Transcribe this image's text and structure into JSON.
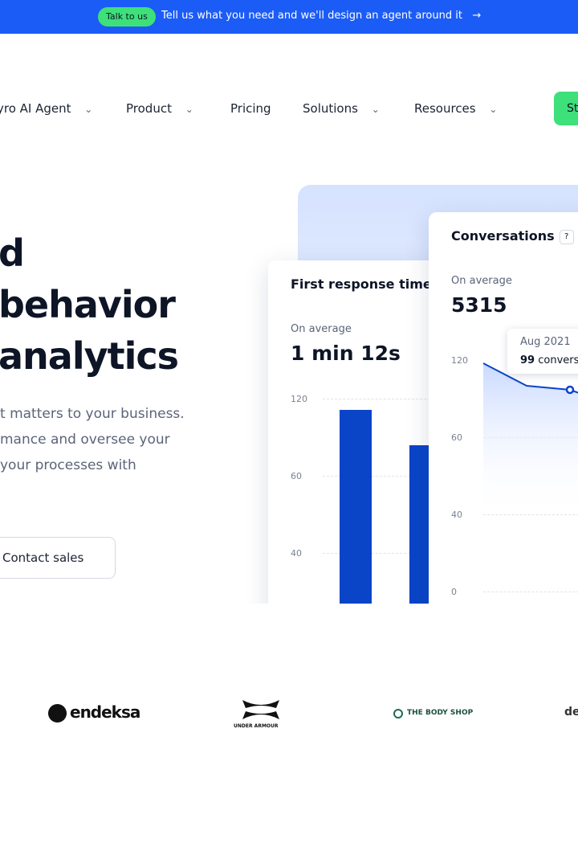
{
  "banner": {
    "pill": "Talk to us",
    "message": "Tell us what you need and we'll design an agent around it"
  },
  "nav": {
    "items": [
      "yro AI Agent",
      "Product",
      "Pricing",
      "Solutions",
      "Resources"
    ],
    "cta": "St"
  },
  "hero": {
    "heading": [
      "d",
      "behavior",
      "analytics"
    ],
    "paragraph": [
      "t matters to your business.",
      "mance and oversee your",
      "your processes with"
    ],
    "button": "Contact sales"
  },
  "card_response": {
    "title": "First response time",
    "help": "?",
    "caption": "On average",
    "value": "1 min 12s",
    "ticks": [
      "120",
      "60",
      "40"
    ]
  },
  "card_conversations": {
    "title": "Conversations",
    "help": "?",
    "caption": "On average",
    "value": "5315",
    "ticks": [
      "120",
      "60",
      "40",
      "0"
    ],
    "tooltip": {
      "date": "Aug 2021",
      "count": "99",
      "unit": "conversations"
    }
  },
  "logos": [
    "endeksa",
    "UNDER ARMOUR",
    "THE BODY SHOP",
    "de"
  ]
}
